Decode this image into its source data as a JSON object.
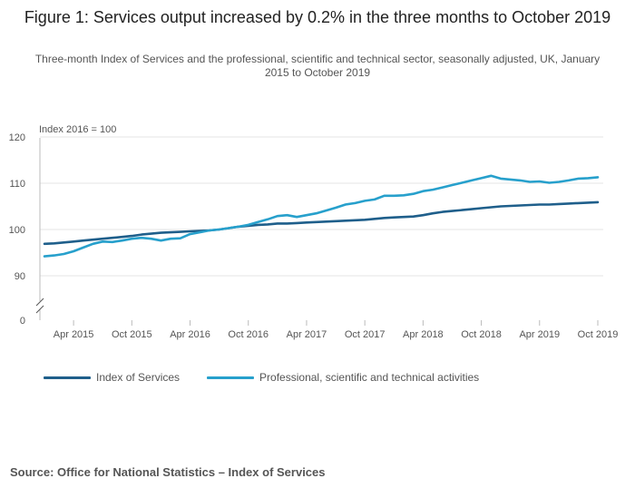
{
  "figure": {
    "title": "Figure 1: Services output increased by 0.2% in the three months to October 2019",
    "subtitle": "Three-month Index of Services and the professional, scientific and technical sector, seasonally adjusted, UK, January 2015 to October 2019",
    "source": "Source: Office for National Statistics – Index of Services"
  },
  "colors": {
    "index_of_services": "#1f5f8b",
    "professional": "#27a0cc",
    "grid": "#e6e6e6",
    "axis": "#bbbbbb"
  },
  "chart_data": {
    "type": "line",
    "title": "Figure 1: Services output increased by 0.2% in the three months to October 2019",
    "ylabel": "Index 2016 = 100",
    "xlabel": "",
    "ylim": [
      0,
      120
    ],
    "yticks": [
      0,
      90,
      100,
      110,
      120
    ],
    "axis_break": true,
    "x_months": [
      "Jan 2015",
      "Feb 2015",
      "Mar 2015",
      "Apr 2015",
      "May 2015",
      "Jun 2015",
      "Jul 2015",
      "Aug 2015",
      "Sep 2015",
      "Oct 2015",
      "Nov 2015",
      "Dec 2015",
      "Jan 2016",
      "Feb 2016",
      "Mar 2016",
      "Apr 2016",
      "May 2016",
      "Jun 2016",
      "Jul 2016",
      "Aug 2016",
      "Sep 2016",
      "Oct 2016",
      "Nov 2016",
      "Dec 2016",
      "Jan 2017",
      "Feb 2017",
      "Mar 2017",
      "Apr 2017",
      "May 2017",
      "Jun 2017",
      "Jul 2017",
      "Aug 2017",
      "Sep 2017",
      "Oct 2017",
      "Nov 2017",
      "Dec 2017",
      "Jan 2018",
      "Feb 2018",
      "Mar 2018",
      "Apr 2018",
      "May 2018",
      "Jun 2018",
      "Jul 2018",
      "Aug 2018",
      "Sep 2018",
      "Oct 2018",
      "Nov 2018",
      "Dec 2018",
      "Jan 2019",
      "Feb 2019",
      "Mar 2019",
      "Apr 2019",
      "May 2019",
      "Jun 2019",
      "Jul 2019",
      "Aug 2019",
      "Sep 2019",
      "Oct 2019"
    ],
    "x_tick_labels": [
      "Apr 2015",
      "Oct 2015",
      "Apr 2016",
      "Oct 2016",
      "Apr 2017",
      "Oct 2017",
      "Apr 2018",
      "Oct 2018",
      "Apr 2019",
      "Oct 2019"
    ],
    "x_tick_indices": [
      3,
      9,
      15,
      21,
      27,
      33,
      39,
      45,
      51,
      57
    ],
    "series": [
      {
        "name": "Index of Services",
        "values": [
          96.9,
          97.0,
          97.2,
          97.4,
          97.6,
          97.8,
          98.0,
          98.2,
          98.4,
          98.6,
          98.9,
          99.1,
          99.3,
          99.4,
          99.5,
          99.6,
          99.7,
          99.8,
          100.0,
          100.3,
          100.6,
          100.8,
          101.0,
          101.1,
          101.3,
          101.3,
          101.4,
          101.5,
          101.6,
          101.7,
          101.8,
          101.9,
          102.0,
          102.1,
          102.3,
          102.5,
          102.6,
          102.7,
          102.8,
          103.1,
          103.5,
          103.8,
          104.0,
          104.2,
          104.4,
          104.6,
          104.8,
          105.0,
          105.1,
          105.2,
          105.3,
          105.4,
          105.4,
          105.5,
          105.6,
          105.7,
          105.8,
          105.9
        ]
      },
      {
        "name": "Professional, scientific and technical activities",
        "values": [
          94.2,
          94.4,
          94.7,
          95.3,
          96.1,
          96.9,
          97.4,
          97.3,
          97.6,
          98.0,
          98.2,
          98.0,
          97.6,
          98.0,
          98.1,
          99.0,
          99.4,
          99.8,
          100.0,
          100.3,
          100.6,
          101.0,
          101.6,
          102.2,
          102.9,
          103.1,
          102.7,
          103.1,
          103.5,
          104.1,
          104.7,
          105.4,
          105.7,
          106.2,
          106.5,
          107.3,
          107.3,
          107.4,
          107.7,
          108.3,
          108.6,
          109.1,
          109.6,
          110.1,
          110.6,
          111.1,
          111.6,
          111.0,
          110.8,
          110.6,
          110.3,
          110.4,
          110.1,
          110.3,
          110.6,
          111.0,
          111.1,
          111.3
        ]
      }
    ]
  }
}
